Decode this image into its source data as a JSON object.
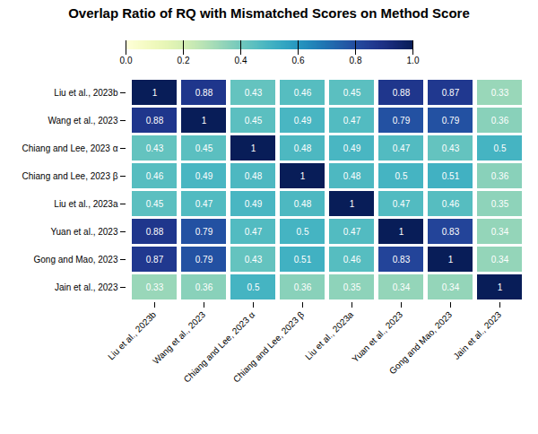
{
  "chart_data": {
    "type": "heatmap",
    "title": "Overlap Ratio of RQ with Mismatched Scores on Method Score",
    "categories": [
      "Liu et al., 2023b",
      "Wang et al., 2023",
      "Chiang and Lee, 2023 α",
      "Chiang and Lee, 2023 β",
      "Liu et al., 2023a",
      "Yuan et al., 2023",
      "Gong and Mao, 2023",
      "Jain et al., 2023"
    ],
    "values": [
      [
        1.0,
        0.88,
        0.43,
        0.46,
        0.45,
        0.88,
        0.87,
        0.33
      ],
      [
        0.88,
        1.0,
        0.45,
        0.49,
        0.47,
        0.79,
        0.79,
        0.36
      ],
      [
        0.43,
        0.45,
        1.0,
        0.48,
        0.49,
        0.47,
        0.43,
        0.5
      ],
      [
        0.46,
        0.49,
        0.48,
        1.0,
        0.48,
        0.5,
        0.51,
        0.36
      ],
      [
        0.45,
        0.47,
        0.49,
        0.48,
        1.0,
        0.47,
        0.46,
        0.35
      ],
      [
        0.88,
        0.79,
        0.47,
        0.5,
        0.47,
        1.0,
        0.83,
        0.34
      ],
      [
        0.87,
        0.79,
        0.43,
        0.51,
        0.46,
        0.83,
        1.0,
        0.34
      ],
      [
        0.33,
        0.36,
        0.5,
        0.36,
        0.35,
        0.34,
        0.34,
        1.0
      ]
    ],
    "color": "YlGnBu",
    "color_range": [
      0,
      1
    ],
    "color_ticks": [
      {
        "value": 0,
        "label": "0.0"
      },
      0.2,
      0.4,
      0.6,
      0.8,
      {
        "value": 1,
        "label": "1.0"
      }
    ],
    "data_labels": true
  }
}
